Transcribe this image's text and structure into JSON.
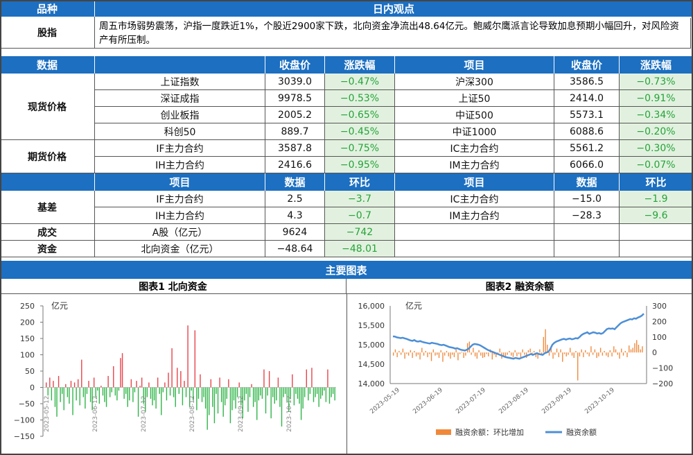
{
  "header": {
    "variety": "品种",
    "daily_view": "日内观点"
  },
  "equity_row": {
    "label": "股指",
    "comment": "周五市场弱势震荡，沪指一度跌近1%，个股近2900家下跌，北向资金净流出48.64亿元。鲍威尔鹰派言论导致加息预期小幅回升，对风险资产有所压制。"
  },
  "price_header": {
    "data": "数据",
    "close": "收盘价",
    "change": "涨跌幅",
    "item": "项目",
    "close2": "收盘价",
    "change2": "涨跌幅"
  },
  "spot": {
    "label": "现货价格",
    "rows": [
      {
        "name": "上证指数",
        "close": "3039.0",
        "chg": "−0.47%",
        "name2": "沪深300",
        "close2": "3586.5",
        "chg2": "−0.73%"
      },
      {
        "name": "深证成指",
        "close": "9978.5",
        "chg": "−0.53%",
        "name2": "上证50",
        "close2": "2414.0",
        "chg2": "−0.91%"
      },
      {
        "name": "创业板指",
        "close": "2005.2",
        "chg": "−0.65%",
        "name2": "中证500",
        "close2": "5573.1",
        "chg2": "−0.34%"
      },
      {
        "name": "科创50",
        "close": "889.7",
        "chg": "−0.45%",
        "name2": "中证1000",
        "close2": "6088.6",
        "chg2": "−0.20%"
      }
    ]
  },
  "futures": {
    "label": "期货价格",
    "rows": [
      {
        "name": "IF主力合约",
        "close": "3587.8",
        "chg": "−0.75%",
        "name2": "IC主力合约",
        "close2": "5561.2",
        "chg2": "−0.30%"
      },
      {
        "name": "IH主力合约",
        "close": "2416.6",
        "chg": "−0.95%",
        "name2": "IM主力合约",
        "close2": "6066.0",
        "chg2": "−0.07%"
      }
    ]
  },
  "data_header": {
    "item": "项目",
    "data": "数据",
    "mom": "环比",
    "item2": "项目",
    "data2": "数据",
    "mom2": "环比"
  },
  "basis": {
    "label": "基差",
    "rows": [
      {
        "name": "IF主力合约",
        "val": "2.5",
        "mom": "−3.7",
        "name2": "IC主力合约",
        "val2": "−15.0",
        "mom2": "−1.9"
      },
      {
        "name": "IH主力合约",
        "val": "4.3",
        "mom": "−0.7",
        "name2": "IM主力合约",
        "val2": "−28.3",
        "mom2": "−9.6"
      }
    ]
  },
  "turnover": {
    "label": "成交",
    "name": "A股（亿元）",
    "val": "9624",
    "mom": "−742"
  },
  "funds": {
    "label": "资金",
    "name": "北向资金（亿元）",
    "val": "−48.64",
    "mom": "−48.01"
  },
  "charts_header": "主要图表",
  "chart_data": [
    {
      "type": "bar",
      "title": "图表1  北向资金",
      "ylabel": "亿元",
      "ylim": [
        -150,
        250
      ],
      "yticks": [
        "250",
        "200",
        "150",
        "100",
        "50",
        "0",
        "−50",
        "−100",
        "−150"
      ],
      "xticks": [
        "2023-05-12",
        "2023-06-12",
        "2023-07-12",
        "2023-08-12",
        "2023-09-12",
        "2023-10-12"
      ],
      "colors": {
        "pos": "#e8434a",
        "neg": "#2fb548"
      },
      "values": [
        15,
        -25,
        30,
        -40,
        20,
        -60,
        -90,
        35,
        -45,
        -20,
        -70,
        10,
        -30,
        -50,
        20,
        -85,
        15,
        -40,
        25,
        -55,
        85,
        -30,
        -65,
        -20,
        20,
        -45,
        -70,
        30,
        -30,
        -10,
        -50,
        5,
        -25,
        -45,
        -60,
        35,
        -30,
        -15,
        65,
        -25,
        -40,
        -10,
        90,
        105,
        -35,
        -20,
        -60,
        -40,
        25,
        -45,
        -15,
        20,
        -90,
        5,
        30,
        -50,
        -75,
        -30,
        15,
        -35,
        -55,
        -40,
        -65,
        30,
        -20,
        -85,
        -15,
        15,
        -40,
        45,
        -25,
        120,
        -30,
        -60,
        60,
        -20,
        50,
        -55,
        20,
        -30,
        190,
        -60,
        -10,
        -40,
        175,
        -70,
        -35,
        40,
        -45,
        -30,
        -65,
        -130,
        -85,
        25,
        -60,
        -110,
        -20,
        -80,
        30,
        -45,
        -90,
        -55,
        -35,
        25,
        -110,
        -70,
        -40,
        -65,
        -30,
        15,
        -55,
        -95,
        -40,
        -20,
        -75,
        -30,
        10,
        -60,
        -45,
        -100,
        -40,
        -25,
        -35,
        55,
        -80,
        -25,
        50,
        -95,
        -30,
        -50,
        -40,
        30,
        -60,
        -120,
        -30,
        -20,
        -45,
        -75,
        -35,
        40,
        -55,
        -20,
        -35,
        -50,
        -100,
        -65,
        -30,
        55,
        -40,
        -20,
        60,
        -45,
        -30,
        -20,
        -60,
        -35,
        -25,
        -10,
        -45,
        55,
        -50,
        -30,
        -20,
        -40
      ]
    },
    {
      "type": "bar+line",
      "title": "图表2  融资余额",
      "ylabel": "亿元",
      "ylim_left": [
        14000,
        16000
      ],
      "ylim_right": [
        -200,
        300
      ],
      "yticks_left": [
        "16,000",
        "15,500",
        "15,000",
        "14,500",
        "14,000"
      ],
      "yticks_right": [
        "300",
        "200",
        "100",
        "0",
        "−100",
        "−200"
      ],
      "xticks": [
        "2023-05-19",
        "2023-06-19",
        "2023-07-19",
        "2023-08-19",
        "2023-09-19",
        "2023-10-19"
      ],
      "legend": [
        {
          "name": "融资余额：环比增加",
          "color": "#f0883a"
        },
        {
          "name": "融资余额",
          "color": "#4d8fd6"
        }
      ],
      "line": [
        15215,
        15210,
        15190,
        15180,
        15170,
        15180,
        15165,
        15150,
        15130,
        15110,
        15100,
        15120,
        15090,
        15080,
        15095,
        15075,
        15060,
        15050,
        15040,
        15030,
        15050,
        15040,
        15030,
        15020,
        15000,
        14990,
        15000,
        14980,
        14960,
        14940,
        14930,
        14920,
        14900,
        14910,
        14890,
        14870,
        14860,
        14850,
        14870,
        14900,
        14950,
        15000,
        15020,
        15010,
        15000,
        14980,
        14950,
        14920,
        14890,
        14860,
        14840,
        14820,
        14800,
        14780,
        14760,
        14740,
        14720,
        14700,
        14680,
        14670,
        14660,
        14650,
        14640,
        14660,
        14650,
        14640,
        14660,
        14680,
        14700,
        14720,
        14740,
        14760,
        14740,
        14760,
        14780,
        14760,
        14750,
        14740,
        14780,
        14800,
        14820,
        14900,
        15000,
        15050,
        15080,
        15100,
        15120,
        15140,
        15150,
        15130,
        15150,
        15160,
        15140,
        15150,
        15170,
        15160,
        15200,
        15250,
        15280,
        15300,
        15320,
        15280,
        15300,
        15320,
        15310,
        15290,
        15300,
        15280,
        15300,
        15350,
        15400,
        15420,
        15410,
        15420,
        15400,
        15450,
        15500,
        15550,
        15580,
        15600,
        15620,
        15640,
        15660,
        15650,
        15680,
        15670,
        15700,
        15720,
        15750,
        15800
      ],
      "bars": [
        -20,
        20,
        -30,
        10,
        -15,
        25,
        -40,
        -10,
        -20,
        15,
        -35,
        10,
        -25,
        -15,
        -45,
        30,
        -20,
        10,
        -30,
        -10,
        -55,
        20,
        -20,
        -15,
        -35,
        15,
        -60,
        -20,
        10,
        -25,
        -40,
        -15,
        -30,
        20,
        -50,
        -10,
        5,
        -35,
        -20,
        60,
        70,
        -15,
        30,
        -25,
        -40,
        15,
        -20,
        -35,
        -30,
        -10,
        -25,
        20,
        -45,
        -15,
        -30,
        -10,
        25,
        -40,
        -20,
        -35,
        -15,
        10,
        -20,
        -30,
        15,
        -25,
        -10,
        -30,
        20,
        -15,
        -35,
        15,
        25,
        -20,
        10,
        -30,
        -40,
        20,
        -10,
        100,
        150,
        50,
        -20,
        30,
        -40,
        -15,
        25,
        -30,
        20,
        -60,
        -10,
        -25,
        -15,
        30,
        -20,
        -35,
        10,
        -180,
        -25,
        20,
        -30,
        15,
        -10,
        -25,
        40,
        -15,
        20,
        -35,
        -25,
        30,
        -20,
        10,
        -20,
        -30,
        15,
        -25,
        40,
        20,
        -15,
        -40,
        25,
        -20,
        10,
        -30,
        45,
        20,
        30,
        60,
        80,
        50,
        20,
        40
      ]
    }
  ]
}
